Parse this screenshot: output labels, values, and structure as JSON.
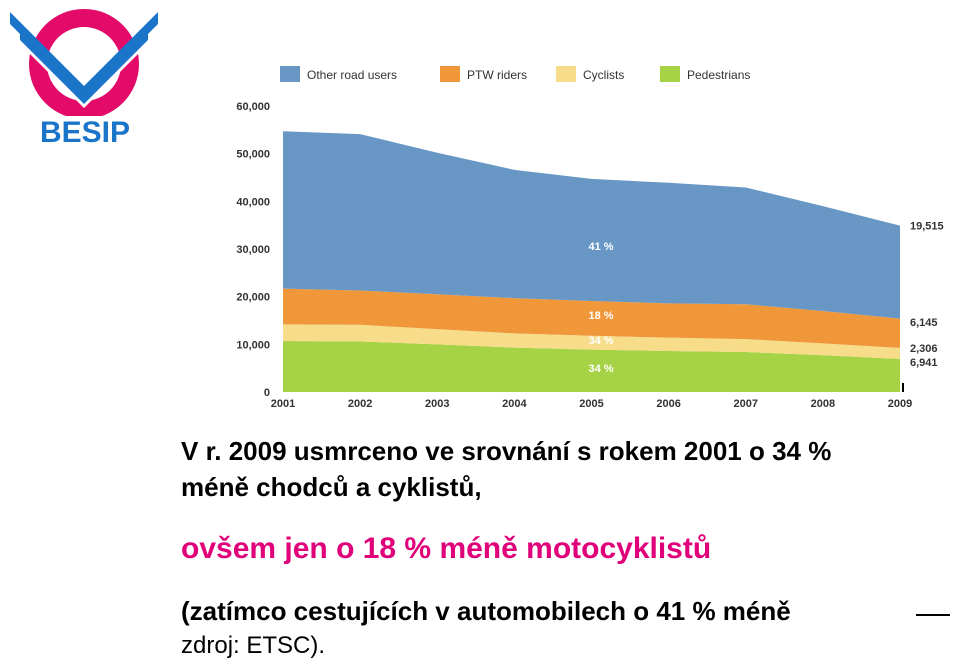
{
  "logo": {
    "text": "BESIP",
    "colors": {
      "ring": "#e30a6a",
      "chevron": "#1a75c9"
    }
  },
  "chart_data": {
    "type": "area",
    "stacked": true,
    "x": [
      "2001",
      "2002",
      "2003",
      "2004",
      "2005",
      "2006",
      "2007",
      "2008",
      "2009"
    ],
    "ylim": [
      0,
      60000
    ],
    "yticks": [
      "0",
      "10,000",
      "20,000",
      "30,000",
      "40,000",
      "50,000",
      "60,000"
    ],
    "grid": false,
    "legend_position": "top",
    "series": [
      {
        "name": "Pedestrians",
        "color": "#a6d246",
        "values": [
          10700,
          10600,
          10000,
          9300,
          8900,
          8600,
          8400,
          7700,
          6941
        ]
      },
      {
        "name": "Cyclists",
        "color": "#f7dc8a",
        "values": [
          3500,
          3500,
          3200,
          3000,
          2900,
          2800,
          2700,
          2500,
          2306
        ]
      },
      {
        "name": "PTW riders",
        "color": "#f0973a",
        "values": [
          7500,
          7200,
          7300,
          7400,
          7300,
          7200,
          7300,
          6800,
          6145
        ]
      },
      {
        "name": "Other road users",
        "color": "#6897c5",
        "values": [
          33000,
          32800,
          29700,
          26900,
          25600,
          25300,
          24500,
          22000,
          19515
        ]
      }
    ],
    "end_labels": [
      "19,515",
      "6,145",
      "2,306",
      "6,941"
    ],
    "annotations": [
      "41 %",
      "18 %",
      "34 %",
      "34 %"
    ]
  },
  "caption": {
    "line1": "V r. 2009 usmrceno ve srovnání s rokem 2001 o 34 %",
    "line2": "méně chodců a cyklistů,",
    "line3": "ovšem jen o 18 % méně motocyklistů",
    "line4": "(zatímco cestujících v automobilech o 41 % méně",
    "line5": "zdroj: ETSC)."
  }
}
